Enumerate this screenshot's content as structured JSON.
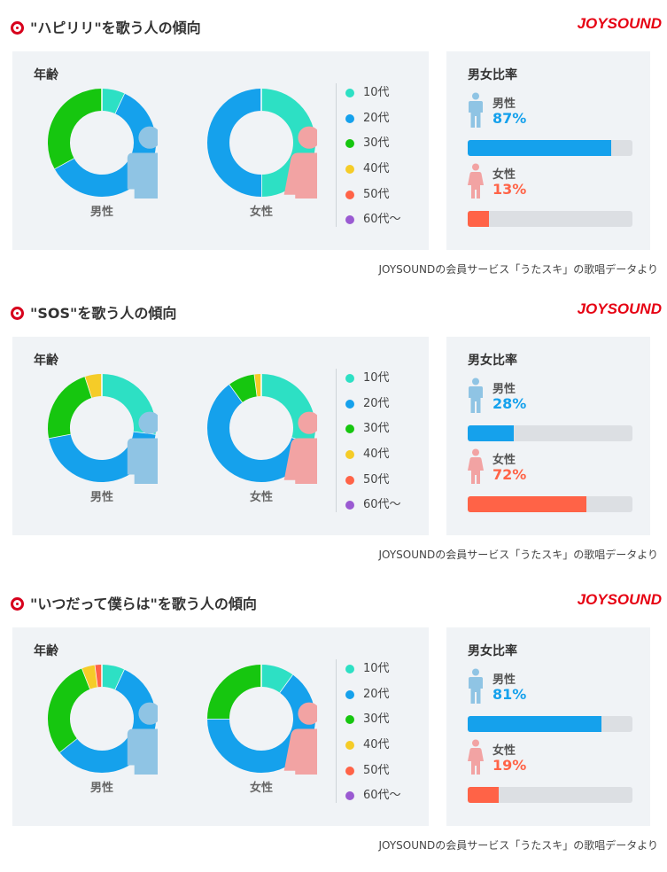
{
  "logo": "JOYSOUND",
  "footnote": "JOYSOUNDの会員サービス「うたスキ」の歌唱データより",
  "age_panel_title": "年齢",
  "ratio_panel_title": "男女比率",
  "male_label": "男性",
  "female_label": "女性",
  "legend": [
    {
      "label": "10代",
      "color": "#2de0c4"
    },
    {
      "label": "20代",
      "color": "#15a1ec"
    },
    {
      "label": "30代",
      "color": "#16c60f"
    },
    {
      "label": "40代",
      "color": "#f5cc28"
    },
    {
      "label": "50代",
      "color": "#ff6347"
    },
    {
      "label": "60代〜",
      "color": "#9a5ad2"
    }
  ],
  "colors": {
    "male": "#15a1ec",
    "female": "#ff6347",
    "male_icon": "#8fc4e4",
    "female_icon": "#f2a3a3",
    "track": "#dcdfe3"
  },
  "sections": [
    {
      "title": "\"ハピリリ\"を歌う人の傾向",
      "male_pct_text": "87%",
      "female_pct_text": "13%",
      "male_pct": 87,
      "female_pct": 13
    },
    {
      "title": "\"SOS\"を歌う人の傾向",
      "male_pct_text": "28%",
      "female_pct_text": "72%",
      "male_pct": 28,
      "female_pct": 72
    },
    {
      "title": "\"いつだって僕らは\"を歌う人の傾向",
      "male_pct_text": "81%",
      "female_pct_text": "19%",
      "male_pct": 81,
      "female_pct": 19
    }
  ],
  "chart_data": [
    {
      "type": "pie",
      "title": "",
      "series_name": "男性",
      "categories": [
        "10代",
        "20代",
        "30代",
        "40代",
        "50代",
        "60代〜"
      ],
      "values": [
        7,
        60,
        33,
        0,
        0,
        0
      ]
    },
    {
      "type": "pie",
      "title": "",
      "series_name": "女性",
      "categories": [
        "10代",
        "20代",
        "30代",
        "40代",
        "50代",
        "60代〜"
      ],
      "values": [
        50,
        50,
        0,
        0,
        0,
        0
      ]
    },
    {
      "type": "pie",
      "title": "",
      "series_name": "男性",
      "categories": [
        "10代",
        "20代",
        "30代",
        "40代",
        "50代",
        "60代〜"
      ],
      "values": [
        27,
        45,
        23,
        5,
        0,
        0
      ]
    },
    {
      "type": "pie",
      "title": "",
      "series_name": "女性",
      "categories": [
        "10代",
        "20代",
        "30代",
        "40代",
        "50代",
        "60代〜"
      ],
      "values": [
        30,
        60,
        8,
        2,
        0,
        0
      ]
    },
    {
      "type": "pie",
      "title": "",
      "series_name": "男性",
      "categories": [
        "10代",
        "20代",
        "30代",
        "40代",
        "50代",
        "60代〜"
      ],
      "values": [
        7,
        58,
        30,
        4,
        2,
        0
      ]
    },
    {
      "type": "pie",
      "title": "",
      "series_name": "女性",
      "categories": [
        "10代",
        "20代",
        "30代",
        "40代",
        "50代",
        "60代〜"
      ],
      "values": [
        10,
        65,
        25,
        0,
        0,
        0
      ]
    },
    {
      "type": "bar",
      "title": "男女比率",
      "categories": [
        "男性",
        "女性"
      ],
      "values": [
        87,
        13
      ]
    },
    {
      "type": "bar",
      "title": "男女比率",
      "categories": [
        "男性",
        "女性"
      ],
      "values": [
        28,
        72
      ]
    },
    {
      "type": "bar",
      "title": "男女比率",
      "categories": [
        "男性",
        "女性"
      ],
      "values": [
        81,
        19
      ]
    }
  ]
}
